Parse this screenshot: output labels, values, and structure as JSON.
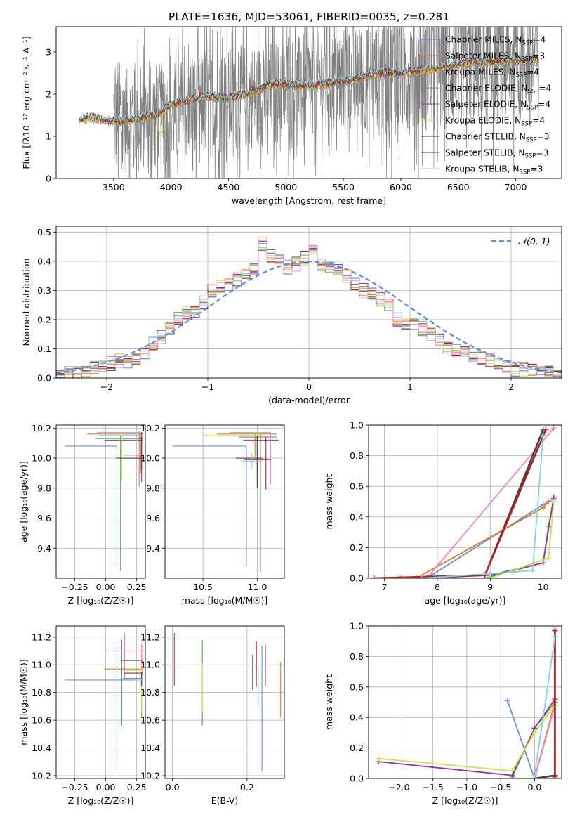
{
  "figure": {
    "title": "PLATE=1636, MJD=53061, FIBERID=0035, z=0.281"
  },
  "model_colors": [
    "#6a8fd8",
    "#e07b28",
    "#e5b52a",
    "#5d9e5a",
    "#9b2fb1",
    "#c5e845",
    "#444444",
    "#b22222",
    "#7fd6e0"
  ],
  "chart_data": [
    {
      "id": "spectrum",
      "type": "line",
      "title": "PLATE=1636, MJD=53061, FIBERID=0035, z=0.281",
      "xlabel": "wavelength [Angstrom, rest frame]",
      "ylabel": "Flux [f$_\\lambda$ 10$^{-17}$ erg cm$^{-2}$ s$^{-1}$ A$^{-1}$]",
      "ylabel_display": "Flux [fλ10⁻¹⁷ erg cm⁻² s⁻¹ A⁻¹]",
      "xlim": [
        3000,
        7400
      ],
      "ylim": [
        0,
        3.6
      ],
      "xticks": [
        3500,
        4000,
        4500,
        5000,
        5500,
        6000,
        6500,
        7000
      ],
      "yticks": [
        0,
        1,
        2,
        3
      ],
      "grid": false,
      "legend_position": "top-right",
      "data_series": {
        "name": "data",
        "color": "#808080",
        "x_range": [
          3500,
          7200
        ],
        "continuum": [
          [
            3500,
            1.3
          ],
          [
            4000,
            1.55
          ],
          [
            4500,
            1.85
          ],
          [
            5000,
            2.1
          ],
          [
            5500,
            2.35
          ],
          [
            6000,
            2.55
          ],
          [
            6500,
            2.7
          ],
          [
            7000,
            2.85
          ],
          [
            7200,
            2.9
          ]
        ]
      },
      "model_continuum": [
        [
          3200,
          1.4
        ],
        [
          3300,
          1.45
        ],
        [
          3400,
          1.4
        ],
        [
          3500,
          1.35
        ],
        [
          3700,
          1.4
        ],
        [
          3900,
          1.55
        ],
        [
          4000,
          1.75
        ],
        [
          4300,
          1.95
        ],
        [
          4500,
          1.9
        ],
        [
          4700,
          2.05
        ],
        [
          4900,
          2.25
        ],
        [
          5200,
          2.2
        ],
        [
          5500,
          2.3
        ],
        [
          5800,
          2.5
        ],
        [
          6000,
          2.5
        ],
        [
          6300,
          2.6
        ],
        [
          6600,
          2.75
        ],
        [
          7000,
          2.8
        ],
        [
          7200,
          2.8
        ]
      ],
      "legend": [
        {
          "label": "Chabrier MILES, N",
          "sub": "SSP",
          "value": "=4"
        },
        {
          "label": "Salpeter MILES, N",
          "sub": "SSP",
          "value": "=3"
        },
        {
          "label": "Kroupa MILES, N",
          "sub": "SSP",
          "value": "=4"
        },
        {
          "label": "Chabrier ELODIE, N",
          "sub": "SSP",
          "value": "=4"
        },
        {
          "label": "Salpeter ELODIE, N",
          "sub": "SSP",
          "value": "=4"
        },
        {
          "label": "Kroupa ELODIE, N",
          "sub": "SSP",
          "value": "=4"
        },
        {
          "label": "Chabrier STELIB, N",
          "sub": "SSP",
          "value": "=3"
        },
        {
          "label": "Salpeter STELIB, N",
          "sub": "SSP",
          "value": "=3"
        },
        {
          "label": "Kroupa STELIB, N",
          "sub": "SSP",
          "value": "=3"
        }
      ]
    },
    {
      "id": "residuals",
      "type": "area",
      "xlabel": "(data-model)/error",
      "ylabel": "Normed distribution",
      "xlim": [
        -2.5,
        2.5
      ],
      "ylim": [
        0,
        0.52
      ],
      "xticks": [
        -2,
        -1,
        0,
        1,
        2
      ],
      "yticks": [
        0.0,
        0.1,
        0.2,
        0.3,
        0.4,
        0.5
      ],
      "grid": true,
      "legend_position": "top-right",
      "legend": [
        {
          "label": "𝒩(0, 1)",
          "style": "dashed",
          "color": "#5b8fdc"
        }
      ],
      "bin_edges_start": -2.5,
      "bin_width": 0.1,
      "base_histogram": [
        0.012,
        0.018,
        0.022,
        0.028,
        0.035,
        0.045,
        0.05,
        0.06,
        0.05,
        0.06,
        0.08,
        0.12,
        0.14,
        0.17,
        0.2,
        0.22,
        0.22,
        0.26,
        0.3,
        0.31,
        0.32,
        0.34,
        0.35,
        0.37,
        0.46,
        0.42,
        0.4,
        0.38,
        0.39,
        0.41,
        0.44,
        0.39,
        0.38,
        0.37,
        0.35,
        0.32,
        0.3,
        0.29,
        0.27,
        0.25,
        0.2,
        0.19,
        0.18,
        0.17,
        0.15,
        0.13,
        0.11,
        0.1,
        0.09,
        0.08,
        0.07,
        0.06,
        0.05,
        0.04,
        0.03,
        0.03,
        0.025,
        0.02,
        0.02,
        0.018
      ]
    },
    {
      "id": "age-vs-Z",
      "type": "scatter",
      "xlabel": "Z [log$_{10}$(Z/Z$_\\odot$)]",
      "xlabel_display": "Z [log₁₀(Z/Z☉)]",
      "ylabel": "age  [log$_{10}$(age/yr)]",
      "ylabel_display": "age  [log₁₀(age/yr)]",
      "xlim": [
        -0.4,
        0.32
      ],
      "ylim": [
        9.2,
        10.22
      ],
      "xticks": [
        -0.25,
        0.0,
        0.25
      ],
      "yticks": [
        9.4,
        9.6,
        9.8,
        10.0,
        10.2
      ],
      "grid": true,
      "points": [
        {
          "x": 0.09,
          "xerr": [
            0.42,
            0.0
          ],
          "y": 10.08,
          "yerr": [
            0.8,
            0.0
          ]
        },
        {
          "x": 0.27,
          "xerr": [
            0.42,
            0.03
          ],
          "y": 10.16,
          "yerr": [
            0.35,
            0.02
          ]
        },
        {
          "x": 0.28,
          "xerr": [
            0.35,
            0.02
          ],
          "y": 10.17,
          "yerr": [
            0.2,
            0.0
          ]
        },
        {
          "x": 0.12,
          "xerr": [
            0.2,
            0.18
          ],
          "y": 10.13,
          "yerr": [
            0.88,
            0.02
          ]
        },
        {
          "x": 0.29,
          "xerr": [
            0.3,
            0.01
          ],
          "y": 10.12,
          "yerr": [
            0.28,
            0.05
          ]
        },
        {
          "x": 0.13,
          "xerr": [
            0.18,
            0.17
          ],
          "y": 10.15,
          "yerr": [
            0.3,
            0.02
          ]
        },
        {
          "x": 0.28,
          "xerr": [
            0.2,
            0.02
          ],
          "y": 10.0,
          "yerr": [
            0.1,
            0.15
          ]
        },
        {
          "x": 0.29,
          "xerr": [
            0.15,
            0.01
          ],
          "y": 10.02,
          "yerr": [
            0.1,
            0.15
          ]
        },
        {
          "x": 0.25,
          "xerr": [
            0.3,
            0.05
          ],
          "y": 10.15,
          "yerr": [
            0.05,
            0.05
          ]
        }
      ]
    },
    {
      "id": "age-vs-mass",
      "type": "scatter",
      "xlabel": "mass [log$_{10}$(M/M$_\\odot$)]",
      "xlabel_display": "mass [log₁₀(M/M☉)]",
      "xlim": [
        10.15,
        11.25
      ],
      "ylim": [
        9.2,
        10.22
      ],
      "xticks": [
        10.5,
        11.0
      ],
      "yticks": [
        9.4,
        9.6,
        9.8,
        10.0,
        10.2
      ],
      "grid": true,
      "points": [
        {
          "x": 10.9,
          "xerr": [
            0.68,
            0.0
          ],
          "y": 10.08,
          "yerr": [
            0.8,
            0.0
          ]
        },
        {
          "x": 10.98,
          "xerr": [
            0.35,
            0.2
          ],
          "y": 10.16,
          "yerr": [
            0.15,
            0.0
          ]
        },
        {
          "x": 11.0,
          "xerr": [
            0.25,
            0.12
          ],
          "y": 10.17,
          "yerr": [
            0.25,
            0.0
          ]
        },
        {
          "x": 11.03,
          "xerr": [
            0.2,
            0.15
          ],
          "y": 10.14,
          "yerr": [
            0.9,
            0.02
          ]
        },
        {
          "x": 11.12,
          "xerr": [
            0.25,
            0.08
          ],
          "y": 10.12,
          "yerr": [
            0.3,
            0.05
          ]
        },
        {
          "x": 11.0,
          "xerr": [
            0.5,
            0.05
          ],
          "y": 10.15,
          "yerr": [
            0.3,
            0.02
          ]
        },
        {
          "x": 11.0,
          "xerr": [
            0.2,
            0.05
          ],
          "y": 10.0,
          "yerr": [
            0.2,
            0.15
          ]
        },
        {
          "x": 11.08,
          "xerr": [
            0.2,
            0.05
          ],
          "y": 9.99,
          "yerr": [
            0.2,
            0.15
          ]
        },
        {
          "x": 10.95,
          "xerr": [
            0.1,
            0.1
          ],
          "y": 9.98,
          "yerr": [
            0.05,
            0.05
          ]
        }
      ]
    },
    {
      "id": "massweight-vs-age",
      "type": "line",
      "xlabel": "age  [log$_{10}$(age/yr)]",
      "xlabel_display": "age  [log₁₀(age/yr)]",
      "ylabel": "mass weight",
      "xlim": [
        6.7,
        10.35
      ],
      "ylim": [
        0,
        1.0
      ],
      "xticks": [
        7,
        8,
        9,
        10
      ],
      "yticks": [
        0.0,
        0.2,
        0.4,
        0.6,
        0.8,
        1.0
      ],
      "grid": true,
      "series": [
        {
          "x": [
            7.6,
            7.8,
            10.0,
            10.2
          ],
          "y": [
            0.0,
            0.0,
            0.48,
            0.52
          ]
        },
        {
          "x": [
            7.3,
            7.6,
            10.0,
            10.1
          ],
          "y": [
            0.0,
            0.0,
            0.46,
            0.5
          ]
        },
        {
          "x": [
            7.0,
            7.8,
            10.2
          ],
          "y": [
            0.0,
            0.0,
            0.98
          ]
        },
        {
          "x": [
            8.9,
            10.0,
            10.1,
            10.2
          ],
          "y": [
            0.0,
            0.1,
            0.34,
            0.5
          ]
        },
        {
          "x": [
            7.8,
            9.0,
            10.0,
            10.2
          ],
          "y": [
            0.0,
            0.02,
            0.1,
            0.53
          ]
        },
        {
          "x": [
            9.0,
            10.0,
            10.1,
            10.2
          ],
          "y": [
            0.0,
            0.12,
            0.13,
            0.5
          ]
        },
        {
          "x": [
            6.8,
            7.9,
            8.9,
            10.0
          ],
          "y": [
            0.0,
            0.01,
            0.02,
            0.97
          ]
        },
        {
          "x": [
            6.8,
            7.9,
            8.9,
            10.05
          ],
          "y": [
            0.0,
            0.01,
            0.02,
            0.97
          ]
        },
        {
          "x": [
            7.7,
            9.0,
            9.8,
            10.0
          ],
          "y": [
            0.0,
            0.03,
            0.05,
            0.93
          ]
        }
      ],
      "colors": [
        "#6a8fd8",
        "#e07b28",
        "#e989c0",
        "#5d9e5a",
        "#9b2fb1",
        "#c5e845",
        "#444444",
        "#b22222",
        "#7fd6e0"
      ]
    },
    {
      "id": "mass-vs-Z",
      "type": "scatter",
      "xlabel": "Z [log$_{10}$(Z/Z$_\\odot$)]",
      "xlabel_display": "Z [log₁₀(Z/Z☉)]",
      "ylabel": "mass [log$_{10}$(M/M$_\\odot$)]",
      "ylabel_display": "mass [log₁₀(M/M☉)]",
      "xlim": [
        -0.4,
        0.32
      ],
      "ylim": [
        10.18,
        11.28
      ],
      "xticks": [
        -0.25,
        0.0,
        0.25
      ],
      "yticks": [
        10.2,
        10.4,
        10.6,
        10.8,
        11.0,
        11.2
      ],
      "grid": true,
      "points": [
        {
          "x": 0.09,
          "xerr": [
            0.42,
            0.2
          ],
          "y": 10.89,
          "yerr": [
            0.66,
            0.25
          ]
        },
        {
          "x": 0.29,
          "xerr": [
            0.3,
            0.01
          ],
          "y": 10.97,
          "yerr": [
            0.35,
            0.1
          ]
        },
        {
          "x": 0.29,
          "xerr": [
            0.3,
            0.01
          ],
          "y": 11.1,
          "yerr": [
            0.1,
            0.05
          ]
        },
        {
          "x": 0.13,
          "xerr": [
            0.0,
            0.16
          ],
          "y": 11.03,
          "yerr": [
            0.47,
            0.15
          ]
        },
        {
          "x": 0.15,
          "xerr": [
            0.15,
            0.15
          ],
          "y": 11.1,
          "yerr": [
            0.2,
            0.13
          ]
        },
        {
          "x": 0.29,
          "xerr": [
            0.15,
            0.0
          ],
          "y": 10.96,
          "yerr": [
            0.3,
            0.05
          ]
        },
        {
          "x": 0.29,
          "xerr": [
            0.15,
            0.0
          ],
          "y": 10.9,
          "yerr": [
            0.05,
            0.05
          ]
        },
        {
          "x": 0.3,
          "xerr": [
            0.15,
            0.0
          ],
          "y": 10.94,
          "yerr": [
            0.05,
            0.23
          ]
        },
        {
          "x": 0.28,
          "xerr": [
            0.05,
            0.02
          ],
          "y": 10.89,
          "yerr": [
            0.05,
            0.05
          ]
        }
      ]
    },
    {
      "id": "mass-vs-EBV",
      "type": "scatter",
      "xlabel": "E(B-V)",
      "xlim": [
        -0.02,
        0.3
      ],
      "ylim": [
        10.18,
        11.28
      ],
      "xticks": [
        0.0,
        0.2
      ],
      "yticks": [
        10.2,
        10.4,
        10.6,
        10.8,
        11.0,
        11.2
      ],
      "grid": true,
      "points": [
        {
          "x": 0.24,
          "y": 10.89,
          "yerr": [
            0.66,
            0.25
          ]
        },
        {
          "x": 0.29,
          "y": 10.97,
          "yerr": [
            0.35,
            0.05
          ]
        },
        {
          "x": 0.25,
          "y": 11.1,
          "yerr": [
            0.25,
            0.05
          ]
        },
        {
          "x": 0.08,
          "y": 11.03,
          "yerr": [
            0.47,
            0.15
          ]
        },
        {
          "x": 0.005,
          "y": 11.1,
          "yerr": [
            0.25,
            0.13
          ]
        },
        {
          "x": 0.08,
          "y": 10.96,
          "yerr": [
            0.3,
            0.05
          ]
        },
        {
          "x": 0.215,
          "y": 10.92,
          "yerr": [
            0.1,
            0.15
          ]
        },
        {
          "x": 0.225,
          "y": 10.94,
          "yerr": [
            0.1,
            0.23
          ]
        },
        {
          "x": 0.23,
          "y": 10.89,
          "yerr": [
            0.2,
            0.1
          ]
        }
      ]
    },
    {
      "id": "massweight-vs-Z",
      "type": "line",
      "xlabel": "Z [log$_{10}$(Z/Z$_\\odot$)]",
      "xlabel_display": "Z [log₁₀(Z/Z☉)]",
      "ylabel": "mass weight",
      "xlim": [
        -2.45,
        0.4
      ],
      "ylim": [
        0,
        1.0
      ],
      "xticks": [
        -2.0,
        -1.5,
        -1.0,
        -0.5,
        0.0
      ],
      "yticks": [
        0.0,
        0.2,
        0.4,
        0.6,
        0.8,
        1.0
      ],
      "grid": true,
      "series": [
        {
          "x": [
            -0.4,
            0.0,
            0.3
          ],
          "y": [
            0.51,
            0.0,
            0.48
          ]
        },
        {
          "x": [
            -0.33,
            0.0,
            0.3
          ],
          "y": [
            0.0,
            0.0,
            0.5
          ]
        },
        {
          "x": [
            0.0,
            0.3,
            0.3
          ],
          "y": [
            0.0,
            0.48,
            0.98
          ]
        },
        {
          "x": [
            -0.33,
            0.0,
            0.3
          ],
          "y": [
            0.01,
            0.33,
            0.5
          ]
        },
        {
          "x": [
            -2.3,
            -0.33,
            0.0,
            0.3
          ],
          "y": [
            0.11,
            0.02,
            0.33,
            0.52
          ]
        },
        {
          "x": [
            -2.3,
            -0.33,
            0.0,
            0.3
          ],
          "y": [
            0.13,
            0.05,
            0.3,
            0.48
          ]
        },
        {
          "x": [
            0.0,
            0.3,
            0.3
          ],
          "y": [
            0.0,
            0.02,
            0.97
          ]
        },
        {
          "x": [
            0.3,
            0.3
          ],
          "y": [
            0.01,
            0.97
          ]
        },
        {
          "x": [
            0.0,
            0.3
          ],
          "y": [
            0.02,
            0.93
          ]
        }
      ]
    }
  ]
}
